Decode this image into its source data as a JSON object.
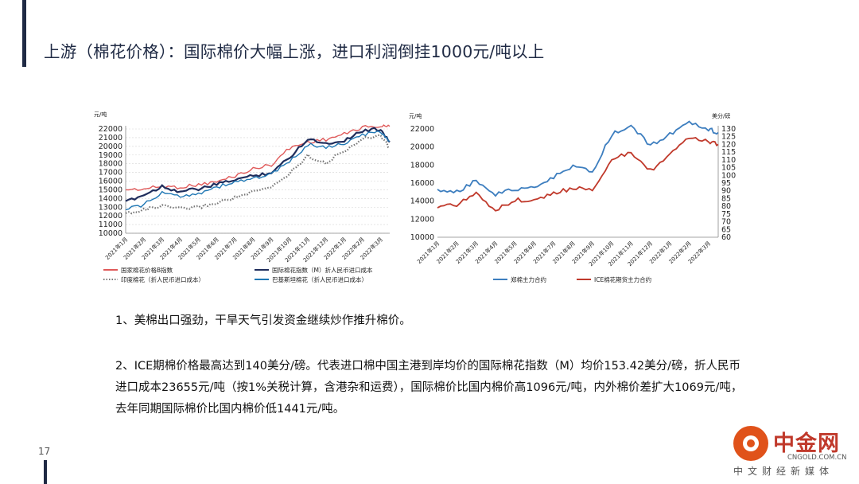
{
  "slide": {
    "title": "上游（棉花价格）：国际棉价大幅上涨，进口利润倒挂1000元/吨以上",
    "page_number": "17",
    "paragraphs": [
      "1、美棉出口强劲，干旱天气引发资金继续炒作推升棉价。",
      "2、ICE期棉价格最高达到140美分/磅。代表进口棉中国主港到岸均价的国际棉花指数（M）均价153.42美分/磅，折人民币进口成本23655元/吨（按1%关税计算，含港杂和运费），国际棉价比国内棉价高1096元/吨，内外棉价差扩大1069元/吨，去年同期国际棉价比国内棉价低1441元/吨。"
    ],
    "logo": {
      "name": "中金网",
      "url": "CNGOLD.COM.CN",
      "sub": "中文财经新媒体"
    },
    "colors": {
      "title": "#1f2a44",
      "accent_bar": "#1f2a44",
      "logo": "#e0521a"
    }
  },
  "chart_data": [
    {
      "type": "line",
      "ylabel": "元/吨",
      "ylim": [
        10000,
        22000
      ],
      "yticks": [
        10000,
        11000,
        12000,
        13000,
        14000,
        15000,
        16000,
        17000,
        18000,
        19000,
        20000,
        21000,
        22000
      ],
      "x_tick_labels": [
        "2021年1月",
        "2021年2月",
        "2021年3月",
        "2021年4月",
        "2021年5月",
        "2021年6月",
        "2021年7月",
        "2021年8月",
        "2021年9月",
        "2021年10月",
        "2021年11月",
        "2021年12月",
        "2022年1月",
        "2022年2月",
        "2022年3月"
      ],
      "x": [
        0,
        1,
        2,
        3,
        4,
        5,
        6,
        7,
        8,
        9,
        10,
        11,
        12,
        13,
        14,
        14.5
      ],
      "grid": true,
      "legend_position": "bottom",
      "series": [
        {
          "name": "国家棉花价格B指数",
          "color": "#e05a5a",
          "style": "solid",
          "values": [
            15000,
            15100,
            15400,
            15300,
            15600,
            15900,
            16600,
            17400,
            17900,
            19800,
            20500,
            20800,
            21400,
            22200,
            22300,
            22300
          ]
        },
        {
          "name": "国际棉花指数（M）折人民币进口成本",
          "color": "#1f2d5c",
          "style": "solid",
          "values": [
            13700,
            14400,
            15400,
            14800,
            15100,
            15600,
            16200,
            16600,
            17000,
            18700,
            20900,
            20300,
            20700,
            21800,
            22000,
            20500
          ]
        },
        {
          "name": "印度棉花（折人民币进口成本）",
          "color": "#777777",
          "style": "dotted",
          "values": [
            12300,
            12700,
            13100,
            12800,
            13000,
            13500,
            14100,
            14700,
            15300,
            16900,
            18900,
            18100,
            19500,
            20800,
            21300,
            19800
          ]
        },
        {
          "name": "巴基斯坦棉花（折人民币进口成本）",
          "color": "#1f77b4",
          "style": "solid",
          "values": [
            12700,
            13300,
            14600,
            14300,
            14600,
            15300,
            15900,
            16300,
            16800,
            18200,
            20200,
            19900,
            20300,
            21300,
            21700,
            20600
          ]
        }
      ]
    },
    {
      "type": "line",
      "ylabel": "元/吨",
      "y2label": "美分/磅",
      "ylim": [
        10000,
        22000
      ],
      "yticks": [
        10000,
        12000,
        14000,
        16000,
        18000,
        20000,
        22000
      ],
      "y2lim": [
        60,
        130
      ],
      "y2ticks": [
        60,
        65,
        70,
        75,
        80,
        85,
        90,
        95,
        100,
        105,
        110,
        115,
        120,
        125,
        130
      ],
      "x_tick_labels": [
        "2021年1月",
        "2021年2月",
        "2021年3月",
        "2021年4月",
        "2021年5月",
        "2021年6月",
        "2021年7月",
        "2021年8月",
        "2021年9月",
        "2021年10月",
        "2021年11月",
        "2021年12月",
        "2022年1月",
        "2022年2月",
        "2022年3月"
      ],
      "x": [
        0,
        1,
        2,
        3,
        4,
        5,
        6,
        7,
        8,
        9,
        10,
        11,
        12,
        13,
        14,
        14.5
      ],
      "grid": false,
      "legend_position": "bottom",
      "series": [
        {
          "name": "郑棉主力合约",
          "color": "#3d7ebf",
          "axis": "left",
          "values": [
            15300,
            15000,
            16300,
            14800,
            15300,
            15400,
            16700,
            17800,
            17200,
            21400,
            22300,
            20200,
            21400,
            22600,
            22000,
            21600
          ]
        },
        {
          "name": "ICE棉花期货主力合约",
          "color": "#c0392b",
          "axis": "right",
          "values": [
            79,
            81,
            88,
            78,
            84,
            84,
            88,
            92,
            91,
            110,
            115,
            103,
            113,
            124,
            122,
            120
          ]
        }
      ]
    }
  ]
}
